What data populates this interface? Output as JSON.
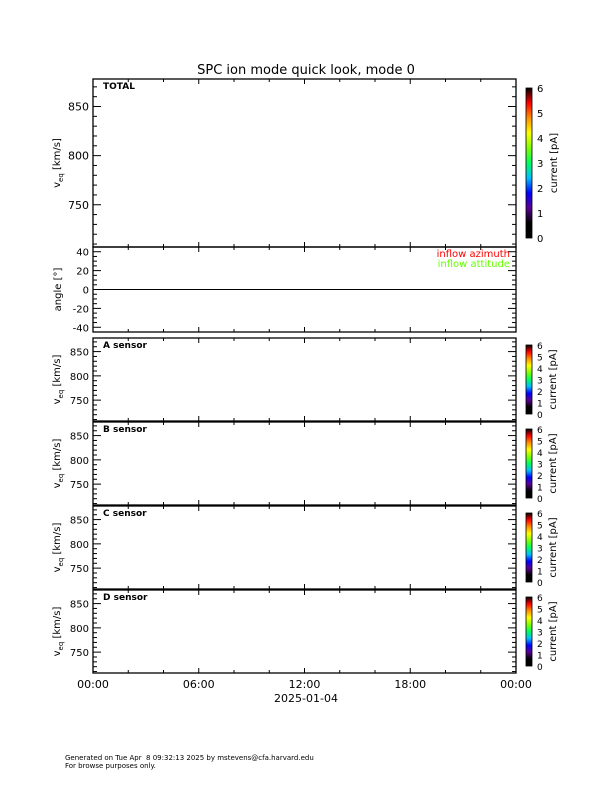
{
  "chart_data": {
    "type": "heatmap",
    "title": "SPC ion mode quick look, mode 0",
    "x_tick_labels": [
      "00:00",
      "06:00",
      "12:00",
      "18:00",
      "00:00"
    ],
    "x_date_label": "2025-01-04",
    "xlim_hours": [
      0,
      24
    ],
    "panels": [
      {
        "id": "total",
        "label": "TOTAL",
        "ylabel": "v_eq [km/s]",
        "ylim": [
          707,
          878
        ],
        "yticks": [
          750,
          800,
          850
        ],
        "colorbar": {
          "label": "current [pA]",
          "range": [
            0,
            6
          ],
          "ticks": [
            "0",
            "1",
            "2",
            "3",
            "4",
            "5",
            "6"
          ]
        },
        "data": []
      },
      {
        "id": "angle",
        "label": "",
        "ylabel": "angle [°]",
        "ylim": [
          -45,
          45
        ],
        "yticks": [
          -40,
          -20,
          0,
          20,
          40
        ],
        "zero_line": true,
        "legend": [
          {
            "name": "inflow azimuth",
            "color": "#ff0000"
          },
          {
            "name": "inflow attitude",
            "color": "#66ff00"
          }
        ],
        "data": []
      },
      {
        "id": "a",
        "label": "A sensor",
        "ylabel": "v_eq [km/s]",
        "ylim": [
          707,
          878
        ],
        "yticks": [
          750,
          800,
          850
        ],
        "colorbar": {
          "label": "current [pA]",
          "range": [
            0,
            6
          ],
          "ticks": [
            "0",
            "1",
            "2",
            "3",
            "4",
            "5",
            "6"
          ]
        },
        "data": []
      },
      {
        "id": "b",
        "label": "B sensor",
        "ylabel": "v_eq [km/s]",
        "ylim": [
          707,
          878
        ],
        "yticks": [
          750,
          800,
          850
        ],
        "colorbar": {
          "label": "current [pA]",
          "range": [
            0,
            6
          ],
          "ticks": [
            "0",
            "1",
            "2",
            "3",
            "4",
            "5",
            "6"
          ]
        },
        "data": []
      },
      {
        "id": "c",
        "label": "C sensor",
        "ylabel": "v_eq [km/s]",
        "ylim": [
          707,
          878
        ],
        "yticks": [
          750,
          800,
          850
        ],
        "colorbar": {
          "label": "current [pA]",
          "range": [
            0,
            6
          ],
          "ticks": [
            "0",
            "1",
            "2",
            "3",
            "4",
            "5",
            "6"
          ]
        },
        "data": []
      },
      {
        "id": "d",
        "label": "D sensor",
        "ylabel": "v_eq [km/s]",
        "ylim": [
          707,
          878
        ],
        "yticks": [
          750,
          800,
          850
        ],
        "colorbar": {
          "label": "current [pA]",
          "range": [
            0,
            6
          ],
          "ticks": [
            "0",
            "1",
            "2",
            "3",
            "4",
            "5",
            "6"
          ]
        },
        "data": []
      }
    ],
    "colormap": [
      "#000000",
      "#000000",
      "#5a0090",
      "#0000ff",
      "#00c0ff",
      "#00ff60",
      "#80ff00",
      "#ffff00",
      "#ff9000",
      "#ff0000",
      "#000000"
    ]
  },
  "footer": {
    "line1": "Generated on Tue Apr  8 09:32:13 2025 by mstevens@cfa.harvard.edu",
    "line2": "For browse purposes only."
  }
}
